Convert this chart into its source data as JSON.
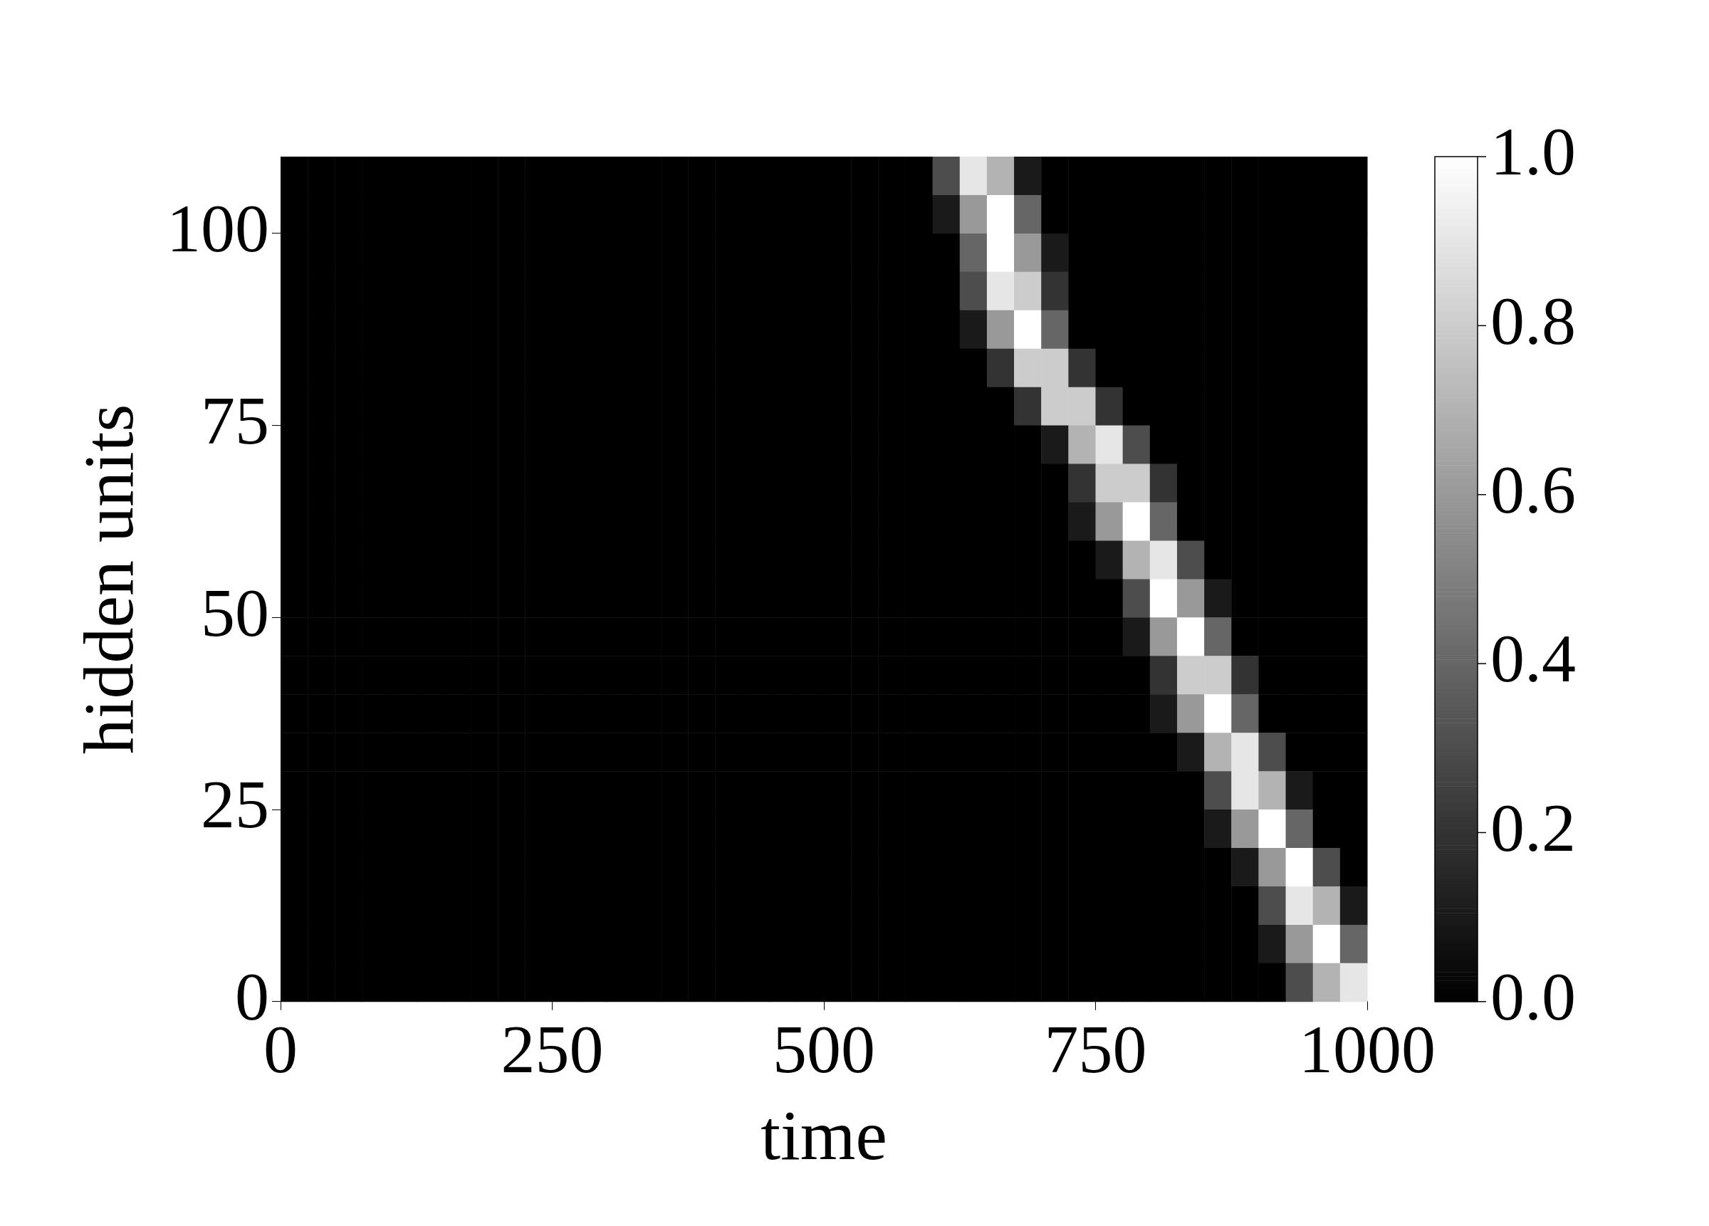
{
  "chart_data": {
    "type": "heatmap",
    "xlabel": "time",
    "ylabel": "hidden units",
    "xlim": [
      0,
      1000
    ],
    "ylim": [
      0,
      110
    ],
    "xticks": [
      0,
      250,
      500,
      750,
      1000
    ],
    "yticks": [
      0,
      25,
      50,
      75,
      100
    ],
    "clim": [
      0,
      1
    ],
    "cticks": [
      {
        "value": 0,
        "label": "0.0"
      },
      {
        "value": 0.2,
        "label": "0.2"
      },
      {
        "value": 0.4,
        "label": "0.4"
      },
      {
        "value": 0.6,
        "label": "0.6"
      },
      {
        "value": 0.8,
        "label": "0.8"
      },
      {
        "value": 1,
        "label": "1.0"
      }
    ],
    "x": [
      12.5,
      37.5,
      62.5,
      87.5,
      112.5,
      137.5,
      162.5,
      187.5,
      212.5,
      237.5,
      262.5,
      287.5,
      312.5,
      337.5,
      362.5,
      387.5,
      412.5,
      437.5,
      462.5,
      487.5,
      512.5,
      537.5,
      562.5,
      587.5,
      612.5,
      637.5,
      662.5,
      687.5,
      712.5,
      737.5,
      762.5,
      787.5,
      812.5,
      837.5,
      862.5,
      887.5,
      912.5,
      937.5,
      962.5,
      987.5
    ],
    "y": [
      107.5,
      102.5,
      97.5,
      92.5,
      87.5,
      82.5,
      77.5,
      72.5,
      67.5,
      62.5,
      57.5,
      52.5,
      47.5,
      42.5,
      37.5,
      32.5,
      27.5,
      22.5,
      17.5,
      12.5,
      7.5,
      2.5
    ],
    "cells": [
      [
        0,
        0,
        0,
        0,
        0,
        0,
        0,
        0,
        0,
        0,
        0,
        0,
        0,
        0,
        0,
        0,
        0,
        0,
        0,
        0,
        0,
        0,
        0,
        0,
        0.3,
        0.9,
        0.7,
        0.1,
        0,
        0,
        0,
        0,
        0,
        0,
        0,
        0,
        0,
        0,
        0,
        0
      ],
      [
        0,
        0,
        0,
        0,
        0,
        0,
        0,
        0,
        0,
        0,
        0,
        0,
        0,
        0,
        0,
        0,
        0,
        0,
        0,
        0,
        0,
        0,
        0,
        0,
        0.1,
        0.6,
        1,
        0.4,
        0,
        0,
        0,
        0,
        0,
        0,
        0,
        0,
        0,
        0,
        0,
        0
      ],
      [
        0,
        0,
        0,
        0,
        0,
        0,
        0,
        0,
        0,
        0,
        0,
        0,
        0,
        0,
        0,
        0,
        0,
        0,
        0,
        0,
        0,
        0,
        0,
        0,
        0,
        0.4,
        1,
        0.6,
        0.1,
        0,
        0,
        0,
        0,
        0,
        0,
        0,
        0,
        0,
        0,
        0
      ],
      [
        0,
        0,
        0,
        0,
        0,
        0,
        0,
        0,
        0,
        0,
        0,
        0,
        0,
        0,
        0,
        0,
        0,
        0,
        0,
        0,
        0,
        0,
        0,
        0,
        0,
        0.3,
        0.9,
        0.8,
        0.2,
        0,
        0,
        0,
        0,
        0,
        0,
        0,
        0,
        0,
        0,
        0
      ],
      [
        0,
        0,
        0,
        0,
        0,
        0,
        0,
        0,
        0,
        0,
        0,
        0,
        0,
        0,
        0,
        0,
        0,
        0,
        0,
        0,
        0,
        0,
        0,
        0,
        0,
        0.1,
        0.6,
        1,
        0.4,
        0,
        0,
        0,
        0,
        0,
        0,
        0,
        0,
        0,
        0,
        0
      ],
      [
        0,
        0,
        0,
        0,
        0,
        0,
        0,
        0,
        0,
        0,
        0,
        0,
        0,
        0,
        0,
        0,
        0,
        0,
        0,
        0,
        0,
        0,
        0,
        0,
        0,
        0,
        0.2,
        0.8,
        0.8,
        0.2,
        0,
        0,
        0,
        0,
        0,
        0,
        0,
        0,
        0,
        0
      ],
      [
        0,
        0,
        0,
        0,
        0,
        0,
        0,
        0,
        0,
        0,
        0,
        0,
        0,
        0,
        0,
        0,
        0,
        0,
        0,
        0,
        0,
        0,
        0,
        0,
        0,
        0,
        0,
        0.2,
        0.8,
        0.8,
        0.2,
        0,
        0,
        0,
        0,
        0,
        0,
        0,
        0,
        0
      ],
      [
        0,
        0,
        0,
        0,
        0,
        0,
        0,
        0,
        0,
        0,
        0,
        0,
        0,
        0,
        0,
        0,
        0,
        0,
        0,
        0,
        0,
        0,
        0,
        0,
        0,
        0,
        0,
        0,
        0.1,
        0.7,
        0.9,
        0.3,
        0,
        0,
        0,
        0,
        0,
        0,
        0,
        0
      ],
      [
        0,
        0,
        0,
        0,
        0,
        0,
        0,
        0,
        0,
        0,
        0,
        0,
        0,
        0,
        0,
        0,
        0,
        0,
        0,
        0,
        0,
        0,
        0,
        0,
        0,
        0,
        0,
        0,
        0,
        0.2,
        0.8,
        0.8,
        0.2,
        0,
        0,
        0,
        0,
        0,
        0,
        0
      ],
      [
        0,
        0,
        0,
        0,
        0,
        0,
        0,
        0,
        0,
        0,
        0,
        0,
        0,
        0,
        0,
        0,
        0,
        0,
        0,
        0,
        0,
        0,
        0,
        0,
        0,
        0,
        0,
        0,
        0,
        0.1,
        0.6,
        1,
        0.4,
        0,
        0,
        0,
        0,
        0,
        0,
        0
      ],
      [
        0,
        0,
        0,
        0,
        0,
        0,
        0,
        0,
        0,
        0,
        0,
        0,
        0,
        0,
        0,
        0,
        0,
        0,
        0,
        0,
        0,
        0,
        0,
        0,
        0,
        0,
        0,
        0,
        0,
        0,
        0.1,
        0.7,
        0.9,
        0.3,
        0,
        0,
        0,
        0,
        0,
        0
      ],
      [
        0,
        0,
        0,
        0,
        0,
        0,
        0,
        0,
        0,
        0,
        0,
        0,
        0,
        0,
        0,
        0,
        0,
        0,
        0,
        0,
        0,
        0,
        0,
        0,
        0,
        0,
        0,
        0,
        0,
        0,
        0,
        0.3,
        1,
        0.6,
        0.1,
        0,
        0,
        0,
        0,
        0
      ],
      [
        0,
        0,
        0,
        0,
        0,
        0,
        0,
        0,
        0,
        0,
        0,
        0,
        0,
        0,
        0,
        0,
        0,
        0,
        0,
        0,
        0,
        0,
        0,
        0,
        0,
        0,
        0,
        0,
        0,
        0,
        0,
        0.1,
        0.6,
        1,
        0.4,
        0,
        0,
        0,
        0,
        0
      ],
      [
        0,
        0,
        0,
        0,
        0,
        0,
        0,
        0,
        0,
        0,
        0,
        0,
        0,
        0,
        0,
        0,
        0,
        0,
        0,
        0,
        0,
        0,
        0,
        0,
        0,
        0,
        0,
        0,
        0,
        0,
        0,
        0,
        0.2,
        0.8,
        0.8,
        0.2,
        0,
        0,
        0,
        0
      ],
      [
        0,
        0,
        0,
        0,
        0,
        0,
        0,
        0,
        0,
        0,
        0,
        0,
        0,
        0,
        0,
        0,
        0,
        0,
        0,
        0,
        0,
        0,
        0,
        0,
        0,
        0,
        0,
        0,
        0,
        0,
        0,
        0,
        0.1,
        0.6,
        1,
        0.4,
        0,
        0,
        0,
        0
      ],
      [
        0,
        0,
        0,
        0,
        0,
        0,
        0,
        0,
        0,
        0,
        0,
        0,
        0,
        0,
        0,
        0,
        0,
        0,
        0,
        0,
        0,
        0,
        0,
        0,
        0,
        0,
        0,
        0,
        0,
        0,
        0,
        0,
        0,
        0.1,
        0.7,
        0.9,
        0.3,
        0,
        0,
        0
      ],
      [
        0,
        0,
        0,
        0,
        0,
        0,
        0,
        0,
        0,
        0,
        0,
        0,
        0,
        0,
        0,
        0,
        0,
        0,
        0,
        0,
        0,
        0,
        0,
        0,
        0,
        0,
        0,
        0,
        0,
        0,
        0,
        0,
        0,
        0,
        0.3,
        0.9,
        0.7,
        0.1,
        0,
        0
      ],
      [
        0,
        0,
        0,
        0,
        0,
        0,
        0,
        0,
        0,
        0,
        0,
        0,
        0,
        0,
        0,
        0,
        0,
        0,
        0,
        0,
        0,
        0,
        0,
        0,
        0,
        0,
        0,
        0,
        0,
        0,
        0,
        0,
        0,
        0,
        0.1,
        0.6,
        1,
        0.4,
        0,
        0
      ],
      [
        0,
        0,
        0,
        0,
        0,
        0,
        0,
        0,
        0,
        0,
        0,
        0,
        0,
        0,
        0,
        0,
        0,
        0,
        0,
        0,
        0,
        0,
        0,
        0,
        0,
        0,
        0,
        0,
        0,
        0,
        0,
        0,
        0,
        0,
        0,
        0.1,
        0.6,
        1,
        0.3,
        0
      ],
      [
        0,
        0,
        0,
        0,
        0,
        0,
        0,
        0,
        0,
        0,
        0,
        0,
        0,
        0,
        0,
        0,
        0,
        0,
        0,
        0,
        0,
        0,
        0,
        0,
        0,
        0,
        0,
        0,
        0,
        0,
        0,
        0,
        0,
        0,
        0,
        0,
        0.3,
        0.9,
        0.7,
        0.1
      ],
      [
        0,
        0,
        0,
        0,
        0,
        0,
        0,
        0,
        0,
        0,
        0,
        0,
        0,
        0,
        0,
        0,
        0,
        0,
        0,
        0,
        0,
        0,
        0,
        0,
        0,
        0,
        0,
        0,
        0,
        0,
        0,
        0,
        0,
        0,
        0,
        0,
        0.1,
        0.6,
        1,
        0.4
      ],
      [
        0,
        0,
        0,
        0,
        0,
        0,
        0,
        0,
        0,
        0,
        0,
        0,
        0,
        0,
        0,
        0,
        0,
        0,
        0,
        0,
        0,
        0,
        0,
        0,
        0,
        0,
        0,
        0,
        0,
        0,
        0,
        0,
        0,
        0,
        0,
        0,
        0,
        0.3,
        0.7,
        0.9
      ]
    ]
  }
}
